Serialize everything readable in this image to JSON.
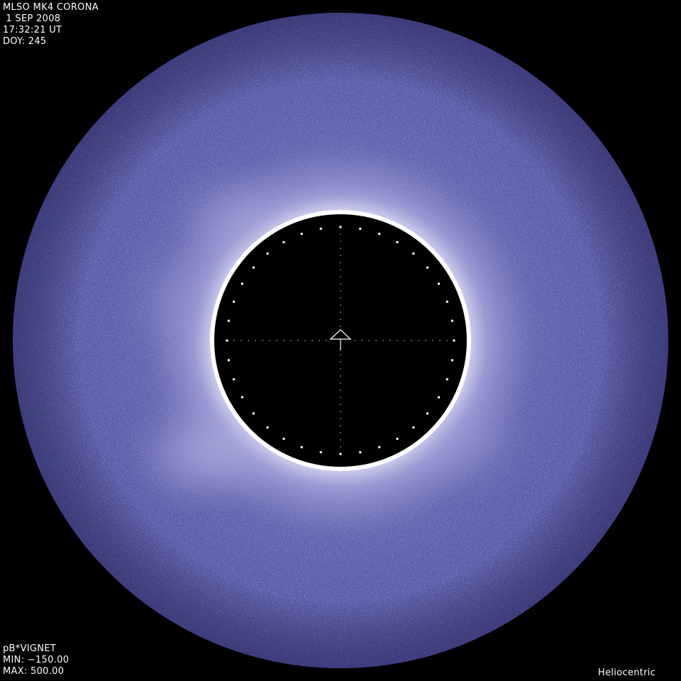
{
  "header": {
    "instrument": "MLSO MK4 CORONA",
    "date": " 1 SEP 2008",
    "time": "17:32:21 UT",
    "doy": "DOY: 245"
  },
  "footer": {
    "product": "pB*VIGNET",
    "min": "MIN: −150.00",
    "max": "MAX: 500.00",
    "frame": "Heliocentric"
  },
  "colors": {
    "corona": "#5b5ba8",
    "corona_bright": "#c8c8ec",
    "occulter": "#000000",
    "rim": "#ffffff",
    "text": "#ffffff"
  },
  "icons": {
    "center": "solar-north-arrow-icon"
  }
}
